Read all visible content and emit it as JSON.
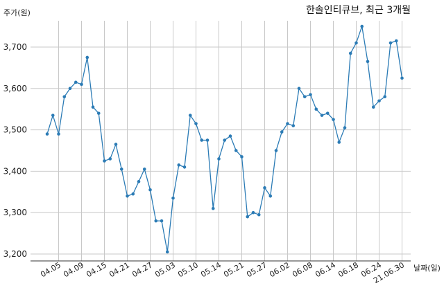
{
  "chart_data": {
    "type": "line",
    "title": "한솔인티큐브, 최근 3개월",
    "ylabel": "주가(원)",
    "xlabel": "날짜(일)",
    "ylim": [
      3180,
      3770
    ],
    "yticks": [
      3200,
      3300,
      3400,
      3500,
      3600,
      3700
    ],
    "ytick_labels": [
      "3,200",
      "3,300",
      "3,400",
      "3,500",
      "3,600",
      "3,700"
    ],
    "xticks": [
      "04.05",
      "04.09",
      "04.15",
      "04.21",
      "04.27",
      "05.03",
      "05.10",
      "05.14",
      "05.21",
      "05.27",
      "06.02",
      "06.08",
      "06.14",
      "06.18",
      "06.24",
      "21.06.30"
    ],
    "xtick_index": [
      2,
      6,
      10,
      14,
      18,
      22,
      26,
      30,
      34,
      38,
      42,
      46,
      50,
      54,
      58,
      62
    ],
    "grid": true,
    "series": [
      {
        "color": "#2b7bb5",
        "values": [
          3490,
          3535,
          3490,
          3580,
          3600,
          3615,
          3610,
          3675,
          3555,
          3540,
          3425,
          3430,
          3465,
          3405,
          3340,
          3345,
          3375,
          3405,
          3355,
          3280,
          3280,
          3205,
          3335,
          3415,
          3410,
          3535,
          3515,
          3475,
          3475,
          3310,
          3430,
          3475,
          3485,
          3450,
          3435,
          3290,
          3300,
          3295,
          3360,
          3340,
          3450,
          3495,
          3515,
          3510,
          3600,
          3580,
          3585,
          3550,
          3535,
          3540,
          3525,
          3470,
          3505,
          3685,
          3710,
          3750,
          3665,
          3555,
          3570,
          3580,
          3710,
          3715,
          3625
        ]
      }
    ]
  }
}
